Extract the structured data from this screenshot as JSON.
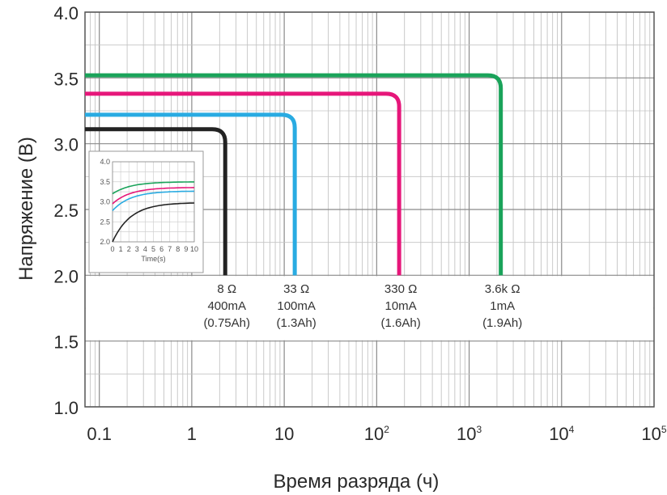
{
  "chart_data": {
    "type": "line",
    "xscale": "log",
    "xlabel": "Время разряда (ч)",
    "ylabel": "Напряжение (В)",
    "xlim": [
      0.07,
      100000
    ],
    "ylim": [
      1.0,
      4.0
    ],
    "grid": true,
    "x_ticks": [
      {
        "value": 0.1,
        "base": "0.1",
        "exp": ""
      },
      {
        "value": 1,
        "base": "1",
        "exp": ""
      },
      {
        "value": 10,
        "base": "10",
        "exp": ""
      },
      {
        "value": 100,
        "base": "10",
        "exp": "2"
      },
      {
        "value": 1000,
        "base": "10",
        "exp": "3"
      },
      {
        "value": 10000,
        "base": "10",
        "exp": "4"
      },
      {
        "value": 100000,
        "base": "10",
        "exp": "5"
      }
    ],
    "y_ticks": [
      "1.0",
      "1.5",
      "2.0",
      "2.5",
      "3.0",
      "3.5",
      "4.0"
    ],
    "series": [
      {
        "color": "#222222",
        "voltage": 3.11,
        "end_time": 2.3,
        "annotation": [
          "8 Ω",
          "400mA",
          "(0.75Ah)"
        ]
      },
      {
        "color": "#29abe2",
        "voltage": 3.22,
        "end_time": 13,
        "annotation": [
          "33 Ω",
          "100mA",
          "(1.3Ah)"
        ]
      },
      {
        "color": "#e6177a",
        "voltage": 3.38,
        "end_time": 175,
        "annotation": [
          "330 Ω",
          "10mA",
          "(1.6Ah)"
        ]
      },
      {
        "color": "#1aa35a",
        "voltage": 3.52,
        "end_time": 2200,
        "annotation": [
          "3.6k Ω",
          "1mA",
          "(1.9Ah)"
        ]
      }
    ]
  },
  "inset": {
    "xlabel": "Time(s)",
    "xlim": [
      0,
      10
    ],
    "ylim": [
      2.0,
      4.0
    ],
    "x_ticks": [
      "0",
      "1",
      "2",
      "3",
      "4",
      "5",
      "6",
      "7",
      "8",
      "9",
      "10"
    ],
    "y_ticks": [
      "2.0",
      "2.5",
      "3.0",
      "3.5",
      "4.0"
    ],
    "series": [
      {
        "color": "#222222",
        "start": 2.0,
        "final": 2.98
      },
      {
        "color": "#29abe2",
        "start": 2.78,
        "final": 3.27
      },
      {
        "color": "#e6177a",
        "start": 2.95,
        "final": 3.36
      },
      {
        "color": "#1aa35a",
        "start": 3.2,
        "final": 3.5
      }
    ]
  }
}
